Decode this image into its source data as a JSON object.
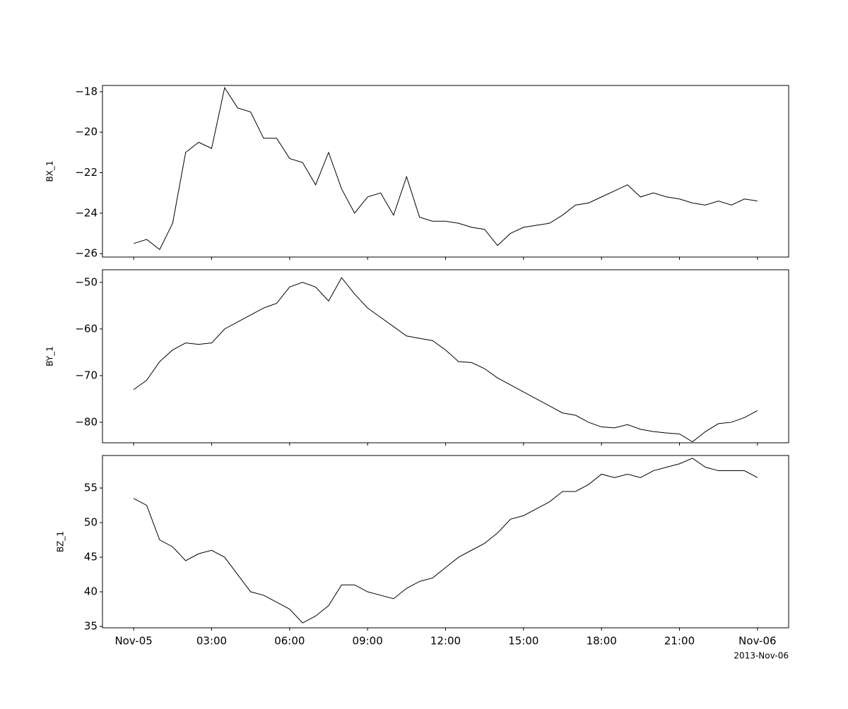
{
  "chart_data": [
    {
      "type": "line",
      "ylabel": "BX_1",
      "color": "#000000",
      "x": [
        "2013-11-05T00:00",
        "2013-11-05T00:30",
        "2013-11-05T01:00",
        "2013-11-05T01:30",
        "2013-11-05T02:00",
        "2013-11-05T02:30",
        "2013-11-05T03:00",
        "2013-11-05T03:30",
        "2013-11-05T04:00",
        "2013-11-05T04:30",
        "2013-11-05T05:00",
        "2013-11-05T05:30",
        "2013-11-05T06:00",
        "2013-11-05T06:30",
        "2013-11-05T07:00",
        "2013-11-05T07:30",
        "2013-11-05T08:00",
        "2013-11-05T08:30",
        "2013-11-05T09:00",
        "2013-11-05T09:30",
        "2013-11-05T10:00",
        "2013-11-05T10:30",
        "2013-11-05T11:00",
        "2013-11-05T11:30",
        "2013-11-05T12:00",
        "2013-11-05T12:30",
        "2013-11-05T13:00",
        "2013-11-05T13:30",
        "2013-11-05T14:00",
        "2013-11-05T14:30",
        "2013-11-05T15:00",
        "2013-11-05T15:30",
        "2013-11-05T16:00",
        "2013-11-05T16:30",
        "2013-11-05T17:00",
        "2013-11-05T17:30",
        "2013-11-05T18:00",
        "2013-11-05T18:30",
        "2013-11-05T19:00",
        "2013-11-05T19:30",
        "2013-11-05T20:00",
        "2013-11-05T20:30",
        "2013-11-05T21:00",
        "2013-11-05T21:30",
        "2013-11-05T22:00",
        "2013-11-05T22:30",
        "2013-11-05T23:00",
        "2013-11-05T23:30",
        "2013-11-06T00:00"
      ],
      "values": [
        -25.5,
        -25.3,
        -25.8,
        -24.5,
        -21,
        -20.5,
        -20.8,
        -17.8,
        -18.8,
        -19,
        -20.3,
        -20.3,
        -21.3,
        -21.5,
        -22.6,
        -21,
        -22.8,
        -24,
        -23.2,
        -23,
        -24.1,
        -22.2,
        -24.2,
        -24.4,
        -24.4,
        -24.5,
        -24.7,
        -24.8,
        -25.6,
        -25,
        -24.7,
        -24.6,
        -24.5,
        -24.1,
        -23.6,
        -23.5,
        -23.2,
        -22.9,
        -22.6,
        -23.2,
        -23,
        -23.2,
        -23.3,
        -23.5,
        -23.6,
        -23.4,
        -23.6,
        -23.3,
        -23.4
      ],
      "xlim": [
        "2013-11-04T22:48",
        "2013-11-06T01:12"
      ],
      "xticks": [
        "2013-11-05T00:00",
        "2013-11-05T03:00",
        "2013-11-05T06:00",
        "2013-11-05T09:00",
        "2013-11-05T12:00",
        "2013-11-05T15:00",
        "2013-11-05T18:00",
        "2013-11-05T21:00",
        "2013-11-06T00:00"
      ],
      "ylim": [
        -26.17,
        -17.69
      ],
      "yticks": [
        {
          "value": -26,
          "label": "−26"
        },
        {
          "value": -24,
          "label": "−24"
        },
        {
          "value": -22,
          "label": "−22"
        },
        {
          "value": -20,
          "label": "−20"
        },
        {
          "value": -18,
          "label": "−18"
        }
      ]
    },
    {
      "type": "line",
      "ylabel": "BY_1",
      "color": "#000000",
      "x": [
        "2013-11-05T00:00",
        "2013-11-05T00:30",
        "2013-11-05T01:00",
        "2013-11-05T01:30",
        "2013-11-05T02:00",
        "2013-11-05T02:30",
        "2013-11-05T03:00",
        "2013-11-05T03:30",
        "2013-11-05T04:00",
        "2013-11-05T04:30",
        "2013-11-05T05:00",
        "2013-11-05T05:30",
        "2013-11-05T06:00",
        "2013-11-05T06:30",
        "2013-11-05T07:00",
        "2013-11-05T07:30",
        "2013-11-05T08:00",
        "2013-11-05T08:30",
        "2013-11-05T09:00",
        "2013-11-05T09:30",
        "2013-11-05T10:00",
        "2013-11-05T10:30",
        "2013-11-05T11:00",
        "2013-11-05T11:30",
        "2013-11-05T12:00",
        "2013-11-05T12:30",
        "2013-11-05T13:00",
        "2013-11-05T13:30",
        "2013-11-05T14:00",
        "2013-11-05T14:30",
        "2013-11-05T15:00",
        "2013-11-05T15:30",
        "2013-11-05T16:00",
        "2013-11-05T16:30",
        "2013-11-05T17:00",
        "2013-11-05T17:30",
        "2013-11-05T18:00",
        "2013-11-05T18:30",
        "2013-11-05T19:00",
        "2013-11-05T19:30",
        "2013-11-05T20:00",
        "2013-11-05T20:30",
        "2013-11-05T21:00",
        "2013-11-05T21:30",
        "2013-11-05T22:00",
        "2013-11-05T22:30",
        "2013-11-05T23:00",
        "2013-11-05T23:30",
        "2013-11-06T00:00"
      ],
      "values": [
        -73,
        -71,
        -67,
        -64.5,
        -63,
        -63.3,
        -63,
        -60,
        -58.5,
        -57,
        -55.5,
        -54.5,
        -51,
        -50,
        -51,
        -54,
        -49,
        -52.5,
        -55.5,
        -57.5,
        -59.5,
        -61.5,
        -62,
        -62.5,
        -64.5,
        -67,
        -67.2,
        -68.5,
        -70.5,
        -72,
        -73.5,
        -75,
        -76.5,
        -78,
        -78.5,
        -80,
        -81,
        -81.2,
        -80.5,
        -81.5,
        -82,
        -82.3,
        -82.5,
        -84.2,
        -82,
        -80.3,
        -80,
        -79,
        -77.5
      ],
      "xlim": [
        "2013-11-04T22:48",
        "2013-11-06T01:12"
      ],
      "xticks": [
        "2013-11-05T00:00",
        "2013-11-05T03:00",
        "2013-11-05T06:00",
        "2013-11-05T09:00",
        "2013-11-05T12:00",
        "2013-11-05T15:00",
        "2013-11-05T18:00",
        "2013-11-05T21:00",
        "2013-11-06T00:00"
      ],
      "ylim": [
        -84.4,
        -47.3
      ],
      "yticks": [
        {
          "value": -80,
          "label": "−80"
        },
        {
          "value": -70,
          "label": "−70"
        },
        {
          "value": -60,
          "label": "−60"
        },
        {
          "value": -50,
          "label": "−50"
        }
      ]
    },
    {
      "type": "line",
      "ylabel": "BZ_1",
      "color": "#000000",
      "x": [
        "2013-11-05T00:00",
        "2013-11-05T00:30",
        "2013-11-05T01:00",
        "2013-11-05T01:30",
        "2013-11-05T02:00",
        "2013-11-05T02:30",
        "2013-11-05T03:00",
        "2013-11-05T03:30",
        "2013-11-05T04:00",
        "2013-11-05T04:30",
        "2013-11-05T05:00",
        "2013-11-05T05:30",
        "2013-11-05T06:00",
        "2013-11-05T06:30",
        "2013-11-05T07:00",
        "2013-11-05T07:30",
        "2013-11-05T08:00",
        "2013-11-05T08:30",
        "2013-11-05T09:00",
        "2013-11-05T09:30",
        "2013-11-05T10:00",
        "2013-11-05T10:30",
        "2013-11-05T11:00",
        "2013-11-05T11:30",
        "2013-11-05T12:00",
        "2013-11-05T12:30",
        "2013-11-05T13:00",
        "2013-11-05T13:30",
        "2013-11-05T14:00",
        "2013-11-05T14:30",
        "2013-11-05T15:00",
        "2013-11-05T15:30",
        "2013-11-05T16:00",
        "2013-11-05T16:30",
        "2013-11-05T17:00",
        "2013-11-05T17:30",
        "2013-11-05T18:00",
        "2013-11-05T18:30",
        "2013-11-05T19:00",
        "2013-11-05T19:30",
        "2013-11-05T20:00",
        "2013-11-05T20:30",
        "2013-11-05T21:00",
        "2013-11-05T21:30",
        "2013-11-05T22:00",
        "2013-11-05T22:30",
        "2013-11-05T23:00",
        "2013-11-05T23:30",
        "2013-11-06T00:00"
      ],
      "values": [
        53.5,
        52.5,
        47.5,
        46.5,
        44.5,
        45.5,
        46,
        45,
        42.5,
        40,
        39.5,
        38.5,
        37.5,
        35.5,
        36.5,
        38,
        41,
        41,
        40,
        39.5,
        39,
        40.5,
        41.5,
        42,
        43.5,
        45,
        46,
        47,
        48.5,
        50.5,
        51,
        52,
        53,
        54.5,
        54.5,
        55.5,
        57,
        56.5,
        57,
        56.5,
        57.5,
        58,
        58.5,
        59.3,
        58,
        57.5,
        57.5,
        57.5,
        56.5
      ],
      "xlim": [
        "2013-11-04T22:48",
        "2013-11-06T01:12"
      ],
      "xticks": [
        {
          "value": "2013-11-05T00:00",
          "label": "Nov-05"
        },
        {
          "value": "2013-11-05T03:00",
          "label": "03:00"
        },
        {
          "value": "2013-11-05T06:00",
          "label": "06:00"
        },
        {
          "value": "2013-11-05T09:00",
          "label": "09:00"
        },
        {
          "value": "2013-11-05T12:00",
          "label": "12:00"
        },
        {
          "value": "2013-11-05T15:00",
          "label": "15:00"
        },
        {
          "value": "2013-11-05T18:00",
          "label": "18:00"
        },
        {
          "value": "2013-11-05T21:00",
          "label": "21:00"
        },
        {
          "value": "2013-11-06T00:00",
          "label": "Nov-06"
        }
      ],
      "x_offset_label": "2013-Nov-06",
      "ylim": [
        34.8,
        59.7
      ],
      "yticks": [
        35,
        40,
        45,
        50,
        55
      ]
    }
  ]
}
